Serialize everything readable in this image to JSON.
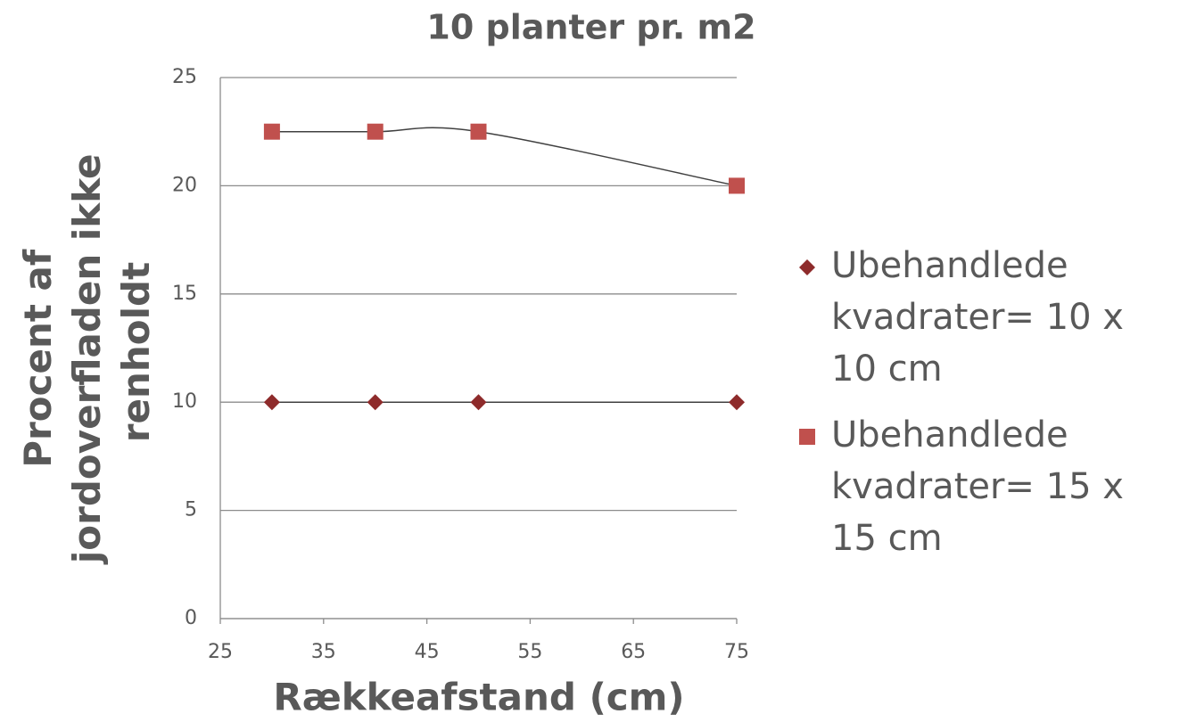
{
  "chart_data": {
    "type": "scatter",
    "title": "10 planter pr. m2",
    "x_label": "Rækkeafstand (cm)",
    "y_label": "Procent af jordoverfladen ikke renholdt",
    "x": [
      30,
      40,
      50,
      75
    ],
    "series": [
      {
        "name": "Ubehandlede kvadrater= 10 x 10 cm",
        "color": "#8e2b2b",
        "marker": "diamond",
        "values": [
          10,
          10,
          10,
          10
        ]
      },
      {
        "name": "Ubehandlede kvadrater= 15 x 15 cm",
        "color": "#c0504d",
        "marker": "square",
        "values": [
          22.5,
          22.5,
          22.5,
          20
        ]
      }
    ],
    "xlim": [
      25,
      75
    ],
    "xticks": [
      25,
      35,
      45,
      55,
      65,
      75
    ],
    "ylim": [
      0,
      25
    ],
    "yticks": [
      0,
      5,
      10,
      15,
      20,
      25
    ],
    "grid": true,
    "legend": "right"
  }
}
